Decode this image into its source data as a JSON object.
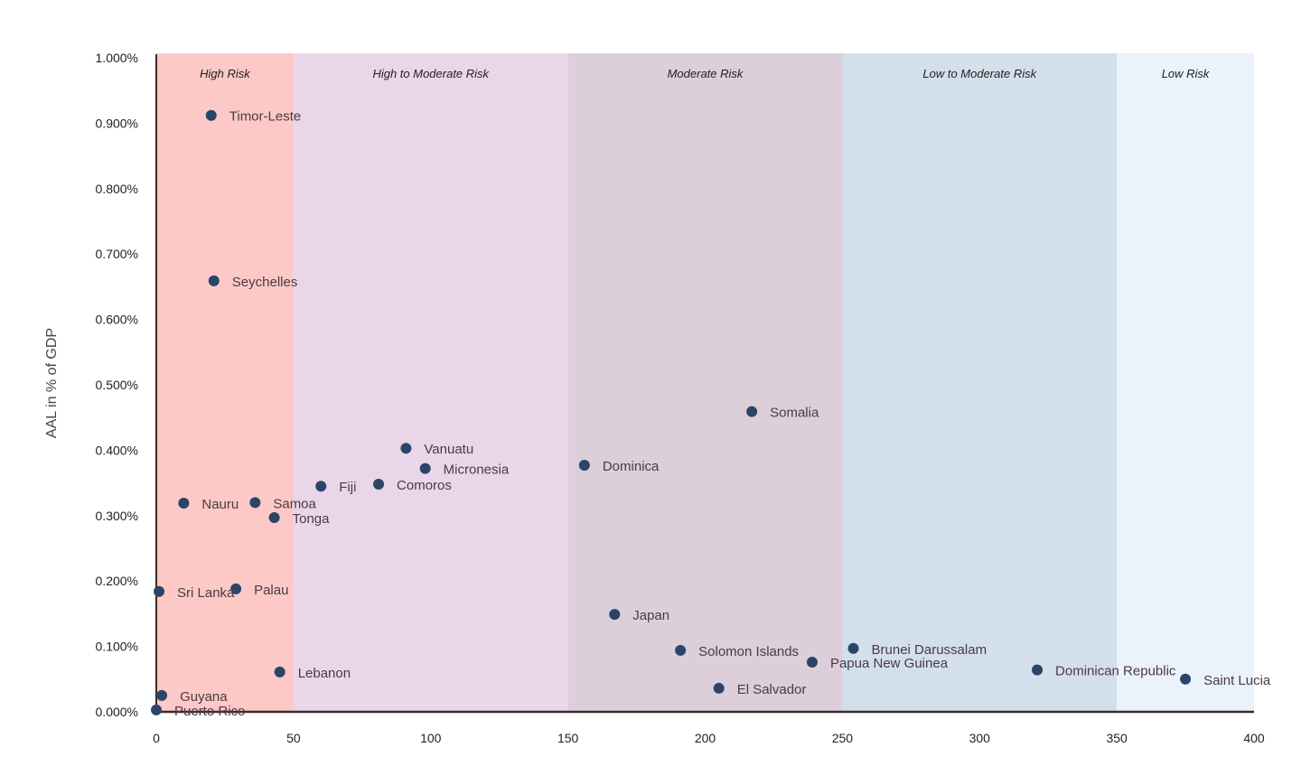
{
  "chart_data": {
    "type": "scatter",
    "title": "",
    "xlabel": "",
    "ylabel": "AAL in % of GDP",
    "xlim": [
      0,
      400
    ],
    "ylim": [
      0,
      1.0
    ],
    "x_ticks": [
      "0",
      "50",
      "100",
      "150",
      "200",
      "250",
      "300",
      "350",
      "400"
    ],
    "y_ticks": [
      "0.000%",
      "0.100%",
      "0.200%",
      "0.300%",
      "0.400%",
      "0.500%",
      "0.600%",
      "0.700%",
      "0.800%",
      "0.900%",
      "1.000%"
    ],
    "grid": false,
    "bands": [
      {
        "label": "High Risk",
        "x_range": [
          0,
          50
        ],
        "color": "#fdc9c6"
      },
      {
        "label": "High to Moderate Risk",
        "x_range": [
          50,
          150
        ],
        "color": "#ebd5e9"
      },
      {
        "label": "Moderate Risk",
        "x_range": [
          150,
          250
        ],
        "color": "#dccfda"
      },
      {
        "label": "Low to Moderate Risk",
        "x_range": [
          250,
          350
        ],
        "color": "#d3dfea"
      },
      {
        "label": "Low Risk",
        "x_range": [
          350,
          400
        ],
        "color": "#eaf2fb"
      }
    ],
    "point_color": "#2b4468",
    "points": [
      {
        "label": "Timor-Leste",
        "x": 20,
        "y": 0.912
      },
      {
        "label": "Seychelles",
        "x": 21,
        "y": 0.659
      },
      {
        "label": "Somalia",
        "x": 217,
        "y": 0.459
      },
      {
        "label": "Vanuatu",
        "x": 91,
        "y": 0.403
      },
      {
        "label": "Micronesia",
        "x": 98,
        "y": 0.372
      },
      {
        "label": "Dominica",
        "x": 156,
        "y": 0.377
      },
      {
        "label": "Fiji",
        "x": 60,
        "y": 0.345
      },
      {
        "label": "Comoros",
        "x": 81,
        "y": 0.348
      },
      {
        "label": "Nauru",
        "x": 10,
        "y": 0.319
      },
      {
        "label": "Samoa",
        "x": 36,
        "y": 0.32
      },
      {
        "label": "Tonga",
        "x": 43,
        "y": 0.297
      },
      {
        "label": "Sri Lanka",
        "x": 1,
        "y": 0.184
      },
      {
        "label": "Palau",
        "x": 29,
        "y": 0.188
      },
      {
        "label": "Japan",
        "x": 167,
        "y": 0.149
      },
      {
        "label": "Solomon Islands",
        "x": 191,
        "y": 0.094
      },
      {
        "label": "Brunei Darussalam",
        "x": 254,
        "y": 0.097
      },
      {
        "label": "Papua New Guinea",
        "x": 239,
        "y": 0.076
      },
      {
        "label": "Lebanon",
        "x": 45,
        "y": 0.061
      },
      {
        "label": "Dominican Republic",
        "x": 321,
        "y": 0.064
      },
      {
        "label": "Saint Lucia",
        "x": 375,
        "y": 0.05
      },
      {
        "label": "El Salvador",
        "x": 205,
        "y": 0.036
      },
      {
        "label": "Guyana",
        "x": 2,
        "y": 0.025
      },
      {
        "label": "Puerto Rico",
        "x": 0,
        "y": 0.003
      }
    ]
  }
}
